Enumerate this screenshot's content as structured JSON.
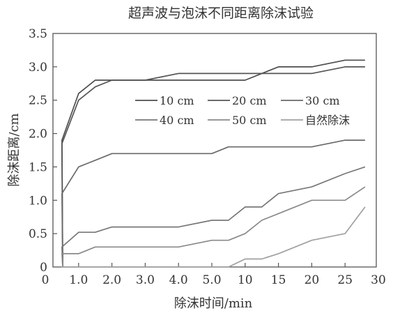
{
  "chart_data": {
    "type": "line",
    "title": "超声波与泡沫不同距离除沫试验",
    "xlabel": "除沫时间/min",
    "ylabel": "除沫距离/cm",
    "x_tick_labels": [
      "0",
      "1.0",
      "2.0",
      "3.0",
      "4.0",
      "5.0",
      "10",
      "15",
      "20",
      "25",
      "30"
    ],
    "x": [
      0,
      0.5,
      1.0,
      1.5,
      2.0,
      2.5,
      3.0,
      4.0,
      5.0,
      7.5,
      10,
      12.5,
      15,
      20,
      25,
      28
    ],
    "y_ticks": [
      0,
      0.5,
      1.0,
      1.5,
      2.0,
      2.5,
      3.0,
      3.5
    ],
    "y_tick_labels": [
      "0",
      "0.5",
      "1.0",
      "1.5",
      "2.0",
      "2.5",
      "3.0",
      "3.5"
    ],
    "ylim": [
      0,
      3.5
    ],
    "grid": false,
    "legend_position": "center",
    "series": [
      {
        "name": "10 cm",
        "color": "#4d4d4d",
        "values": [
          0,
          1.9,
          2.6,
          2.8,
          2.8,
          2.8,
          2.8,
          2.8,
          2.8,
          2.8,
          2.8,
          2.9,
          3.0,
          3.0,
          3.1,
          3.1
        ]
      },
      {
        "name": "20 cm",
        "color": "#555555",
        "values": [
          0,
          1.85,
          2.5,
          2.7,
          2.8,
          2.8,
          2.8,
          2.9,
          2.9,
          2.9,
          2.9,
          2.9,
          2.9,
          2.9,
          3.0,
          3.0
        ]
      },
      {
        "name": "30 cm",
        "color": "#6a6a6a",
        "values": [
          0,
          1.1,
          1.5,
          1.6,
          1.7,
          1.7,
          1.7,
          1.7,
          1.7,
          1.8,
          1.8,
          1.8,
          1.8,
          1.8,
          1.9,
          1.9
        ]
      },
      {
        "name": "40 cm",
        "color": "#777777",
        "values": [
          0,
          0.3,
          0.52,
          0.52,
          0.6,
          0.6,
          0.6,
          0.6,
          0.7,
          0.7,
          0.9,
          0.9,
          1.1,
          1.2,
          1.4,
          1.5
        ]
      },
      {
        "name": "50 cm",
        "color": "#8a8a8a",
        "values": [
          0,
          0.2,
          0.2,
          0.3,
          0.3,
          0.3,
          0.3,
          0.3,
          0.4,
          0.4,
          0.5,
          0.7,
          0.8,
          1.0,
          1.0,
          1.2
        ]
      },
      {
        "name": "自然除沫",
        "color": "#a0a0a0",
        "values": [
          0,
          0,
          0,
          0,
          0,
          0,
          0,
          0,
          0,
          0,
          0.12,
          0.12,
          0.2,
          0.4,
          0.5,
          0.9
        ]
      }
    ]
  }
}
